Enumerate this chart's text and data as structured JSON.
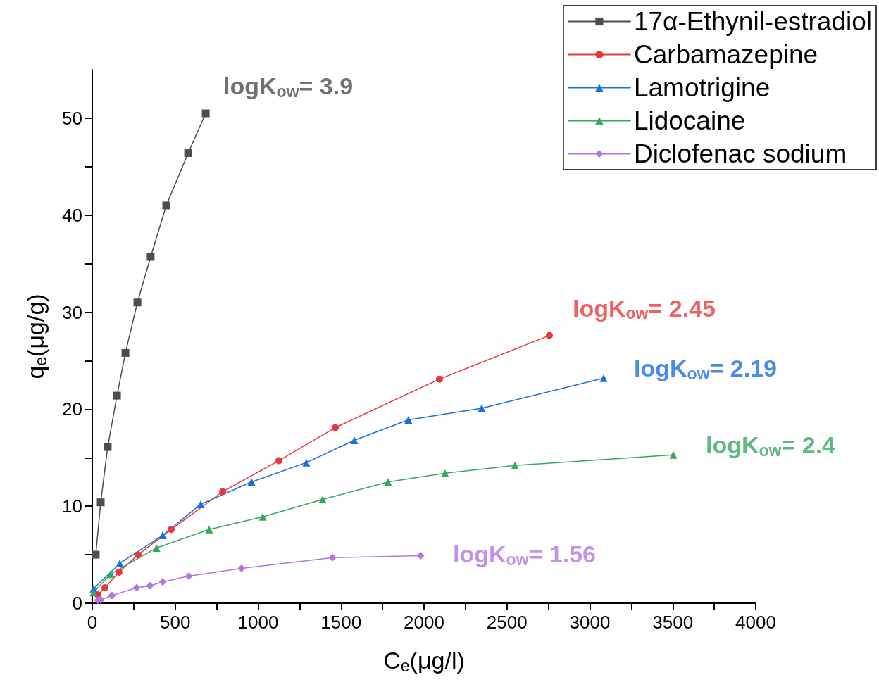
{
  "chart_data": {
    "type": "line",
    "xlabel": "C$_{e}$(μg/l)",
    "ylabel": "q$_{e}$(μg/g)",
    "xlim": [
      0,
      4000
    ],
    "ylim": [
      0,
      55
    ],
    "xticks": [
      0,
      {
        "value": 250,
        "label": null
      },
      500,
      {
        "value": 750,
        "label": null
      },
      1000,
      {
        "value": 1250,
        "label": null
      },
      1500,
      {
        "value": 1750,
        "label": null
      },
      2000,
      {
        "value": 2250,
        "label": null
      },
      2500,
      {
        "value": 2750,
        "label": null
      },
      3000,
      {
        "value": 3250,
        "label": null
      },
      3500,
      {
        "value": 3750,
        "label": null
      },
      4000
    ],
    "yticks": [
      0,
      {
        "value": 5,
        "label": null
      },
      10,
      {
        "value": 15,
        "label": null
      },
      20,
      {
        "value": 25,
        "label": null
      },
      30,
      {
        "value": 35,
        "label": null
      },
      40,
      {
        "value": 45,
        "label": null
      },
      50
    ],
    "grid": false,
    "legend": "top right",
    "line_style": "solid",
    "series": [
      {
        "name": "17α-Ethynil-estradiol",
        "color": "#4d4d4d",
        "marker": "square",
        "x": [
          21,
          51,
          93,
          149,
          200,
          272,
          352,
          446,
          578,
          684
        ],
        "values": [
          5.0,
          10.4,
          16.1,
          21.4,
          25.8,
          31.0,
          35.7,
          41.0,
          46.4,
          50.5
        ]
      },
      {
        "name": "Carbamazepine",
        "color": "#e8383d",
        "marker": "circle",
        "x": [
          34,
          76,
          161,
          276,
          476,
          786,
          1125,
          1465,
          2093,
          2756
        ],
        "values": [
          0.87,
          1.6,
          3.2,
          5.0,
          7.6,
          11.5,
          14.7,
          18.1,
          23.1,
          27.6
        ]
      },
      {
        "name": "Lamotrigine",
        "color": "#1a6fdf",
        "marker": "triangle",
        "x": [
          8,
          166,
          425,
          654,
          960,
          1291,
          1580,
          1906,
          2348,
          3083
        ],
        "values": [
          1.5,
          4.1,
          7.0,
          10.2,
          12.5,
          14.5,
          16.8,
          18.9,
          20.1,
          23.2
        ]
      },
      {
        "name": "Lidocaine",
        "color": "#37a760",
        "marker": "triangle",
        "x": [
          8,
          110,
          387,
          705,
          1028,
          1389,
          1783,
          2127,
          2548,
          3503
        ],
        "values": [
          1.1,
          3.0,
          5.7,
          7.6,
          8.9,
          10.7,
          12.5,
          13.4,
          14.2,
          15.3
        ]
      },
      {
        "name": "Diclofenac sodium",
        "color": "#b177de",
        "marker": "diamond",
        "x": [
          34,
          51,
          119,
          268,
          348,
          425,
          582,
          900,
          1448,
          1979
        ],
        "values": [
          0.3,
          0.35,
          0.8,
          1.6,
          1.8,
          2.2,
          2.8,
          3.6,
          4.7,
          4.9
        ]
      }
    ],
    "annotations": [
      "logK$_{ow}$= 3.9",
      "logK$_{ow}$= 2.45",
      "logK$_{ow}$= 2.19",
      "logK$_{ow}$= 2.4",
      "logK$_{ow}$= 1.56"
    ]
  }
}
